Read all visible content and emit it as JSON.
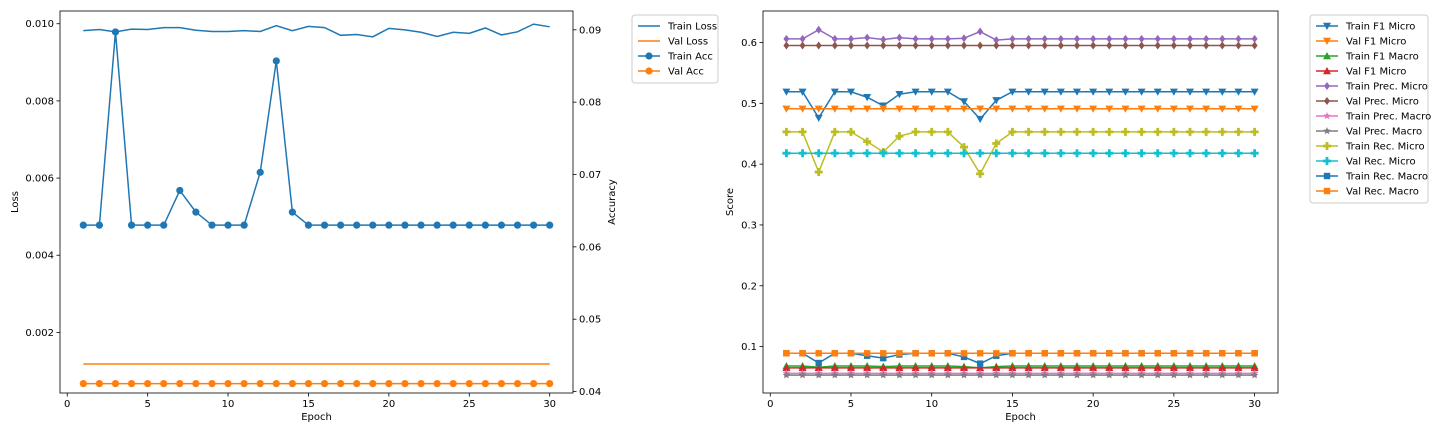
{
  "chart_data": [
    {
      "type": "line",
      "xlabel": "Epoch",
      "ylabel": "Loss",
      "ylabel_right": "Accuracy",
      "xlim": [
        -0.45,
        31.45
      ],
      "ylim": [
        0.00043,
        0.01033
      ],
      "ylim_right": [
        0.0398,
        0.0926
      ],
      "x_ticks": [
        0,
        5,
        10,
        15,
        20,
        25,
        30
      ],
      "y_ticks": [
        0.002,
        0.004,
        0.006,
        0.008,
        0.01
      ],
      "y_tick_labels": [
        "0.002",
        "0.004",
        "0.006",
        "0.008",
        "0.010"
      ],
      "y_ticks_right": [
        0.04,
        0.05,
        0.06,
        0.07,
        0.08,
        0.09
      ],
      "y_tick_labels_right": [
        "0.04",
        "0.05",
        "0.06",
        "0.07",
        "0.08",
        "0.09"
      ],
      "grid": false,
      "legend_position": "outside-right",
      "x": [
        1,
        2,
        3,
        4,
        5,
        6,
        7,
        8,
        9,
        10,
        11,
        12,
        13,
        14,
        15,
        16,
        17,
        18,
        19,
        20,
        21,
        22,
        23,
        24,
        25,
        26,
        27,
        28,
        29,
        30
      ],
      "series": [
        {
          "name": "Train Loss",
          "axis": "left",
          "color": "#1f77b4",
          "marker": "none",
          "values": [
            0.00982,
            0.00985,
            0.00979,
            0.00986,
            0.00985,
            0.0099,
            0.0099,
            0.00983,
            0.0098,
            0.0098,
            0.00982,
            0.0098,
            0.00995,
            0.00982,
            0.00993,
            0.0099,
            0.0097,
            0.00972,
            0.00966,
            0.00988,
            0.00984,
            0.00978,
            0.00967,
            0.00978,
            0.00975,
            0.00989,
            0.00971,
            0.00979,
            0.00999,
            0.00992
          ]
        },
        {
          "name": "Val Loss",
          "axis": "left",
          "color": "#ff7f0e",
          "marker": "none",
          "values": [
            0.00118,
            0.00118,
            0.00118,
            0.00118,
            0.00118,
            0.00118,
            0.00118,
            0.00118,
            0.00118,
            0.00118,
            0.00118,
            0.00118,
            0.00118,
            0.00118,
            0.00118,
            0.00118,
            0.00118,
            0.00118,
            0.00118,
            0.00118,
            0.00118,
            0.00118,
            0.00118,
            0.00118,
            0.00118,
            0.00118,
            0.00118,
            0.00118,
            0.00118,
            0.00118
          ]
        },
        {
          "name": "Train Acc",
          "axis": "right",
          "color": "#1f77b4",
          "marker": "circle",
          "values": [
            0.063,
            0.063,
            0.0897,
            0.063,
            0.063,
            0.063,
            0.0678,
            0.0648,
            0.063,
            0.063,
            0.063,
            0.0703,
            0.0857,
            0.0648,
            0.063,
            0.063,
            0.063,
            0.063,
            0.063,
            0.063,
            0.063,
            0.063,
            0.063,
            0.063,
            0.063,
            0.063,
            0.063,
            0.063,
            0.063,
            0.063
          ]
        },
        {
          "name": "Val Acc",
          "axis": "right",
          "color": "#ff7f0e",
          "marker": "circle",
          "values": [
            0.0411,
            0.0411,
            0.0411,
            0.0411,
            0.0411,
            0.0411,
            0.0411,
            0.0411,
            0.0411,
            0.0411,
            0.0411,
            0.0411,
            0.0411,
            0.0411,
            0.0411,
            0.0411,
            0.0411,
            0.0411,
            0.0411,
            0.0411,
            0.0411,
            0.0411,
            0.0411,
            0.0411,
            0.0411,
            0.0411,
            0.0411,
            0.0411,
            0.0411,
            0.0411
          ]
        }
      ]
    },
    {
      "type": "line",
      "xlabel": "Epoch",
      "ylabel": "Score",
      "xlim": [
        -0.45,
        31.45
      ],
      "ylim": [
        0.0237,
        0.6518
      ],
      "x_ticks": [
        0,
        5,
        10,
        15,
        20,
        25,
        30
      ],
      "y_ticks": [
        0.1,
        0.2,
        0.3,
        0.4,
        0.5,
        0.6
      ],
      "y_tick_labels": [
        "0.1",
        "0.2",
        "0.3",
        "0.4",
        "0.5",
        "0.6"
      ],
      "grid": false,
      "legend_position": "outside-right",
      "x": [
        1,
        2,
        3,
        4,
        5,
        6,
        7,
        8,
        9,
        10,
        11,
        12,
        13,
        14,
        15,
        16,
        17,
        18,
        19,
        20,
        21,
        22,
        23,
        24,
        25,
        26,
        27,
        28,
        29,
        30
      ],
      "series": [
        {
          "name": "Train F1 Micro",
          "color": "#1f77b4",
          "marker": "triangle-down",
          "values": [
            0.519,
            0.519,
            0.476,
            0.519,
            0.519,
            0.51,
            0.496,
            0.515,
            0.519,
            0.519,
            0.519,
            0.503,
            0.474,
            0.505,
            0.519,
            0.519,
            0.519,
            0.519,
            0.519,
            0.519,
            0.519,
            0.519,
            0.519,
            0.519,
            0.519,
            0.519,
            0.519,
            0.519,
            0.519,
            0.519
          ]
        },
        {
          "name": "Val F1 Micro",
          "color": "#ff7f0e",
          "marker": "triangle-down",
          "values": [
            0.491,
            0.491,
            0.491,
            0.491,
            0.491,
            0.491,
            0.491,
            0.491,
            0.491,
            0.491,
            0.491,
            0.491,
            0.491,
            0.491,
            0.491,
            0.491,
            0.491,
            0.491,
            0.491,
            0.491,
            0.491,
            0.491,
            0.491,
            0.491,
            0.491,
            0.491,
            0.491,
            0.491,
            0.491,
            0.491
          ]
        },
        {
          "name": "Train F1 Macro",
          "color": "#2ca02c",
          "marker": "triangle-up",
          "values": [
            0.068,
            0.068,
            0.066,
            0.068,
            0.068,
            0.068,
            0.067,
            0.068,
            0.068,
            0.068,
            0.068,
            0.067,
            0.065,
            0.067,
            0.068,
            0.068,
            0.068,
            0.068,
            0.068,
            0.068,
            0.068,
            0.068,
            0.068,
            0.068,
            0.068,
            0.068,
            0.068,
            0.068,
            0.068,
            0.068
          ]
        },
        {
          "name": "Val F1 Micro",
          "color": "#d62728",
          "marker": "triangle-up",
          "values": [
            0.065,
            0.065,
            0.065,
            0.065,
            0.065,
            0.065,
            0.065,
            0.065,
            0.065,
            0.065,
            0.065,
            0.065,
            0.065,
            0.065,
            0.065,
            0.065,
            0.065,
            0.065,
            0.065,
            0.065,
            0.065,
            0.065,
            0.065,
            0.065,
            0.065,
            0.065,
            0.065,
            0.065,
            0.065,
            0.065
          ]
        },
        {
          "name": "Train Prec. Micro",
          "color": "#9467bd",
          "marker": "diamond",
          "values": [
            0.606,
            0.606,
            0.621,
            0.606,
            0.606,
            0.608,
            0.605,
            0.608,
            0.606,
            0.606,
            0.606,
            0.607,
            0.618,
            0.604,
            0.606,
            0.606,
            0.606,
            0.606,
            0.606,
            0.606,
            0.606,
            0.606,
            0.606,
            0.606,
            0.606,
            0.606,
            0.606,
            0.606,
            0.606,
            0.606
          ]
        },
        {
          "name": "Val Prec. Micro",
          "color": "#8c564b",
          "marker": "diamond",
          "values": [
            0.595,
            0.595,
            0.595,
            0.595,
            0.595,
            0.595,
            0.595,
            0.595,
            0.595,
            0.595,
            0.595,
            0.595,
            0.595,
            0.595,
            0.595,
            0.595,
            0.595,
            0.595,
            0.595,
            0.595,
            0.595,
            0.595,
            0.595,
            0.595,
            0.595,
            0.595,
            0.595,
            0.595,
            0.595,
            0.595
          ]
        },
        {
          "name": "Train Prec. Macro",
          "color": "#e377c2",
          "marker": "star",
          "values": [
            0.056,
            0.056,
            0.056,
            0.056,
            0.056,
            0.056,
            0.056,
            0.056,
            0.056,
            0.056,
            0.056,
            0.056,
            0.056,
            0.056,
            0.056,
            0.056,
            0.056,
            0.056,
            0.056,
            0.056,
            0.056,
            0.056,
            0.056,
            0.056,
            0.056,
            0.056,
            0.056,
            0.056,
            0.056,
            0.056
          ]
        },
        {
          "name": "Val Prec. Macro",
          "color": "#7f7f7f",
          "marker": "star",
          "values": [
            0.053,
            0.053,
            0.053,
            0.053,
            0.053,
            0.053,
            0.053,
            0.053,
            0.053,
            0.053,
            0.053,
            0.053,
            0.053,
            0.053,
            0.053,
            0.053,
            0.053,
            0.053,
            0.053,
            0.053,
            0.053,
            0.053,
            0.053,
            0.053,
            0.053,
            0.053,
            0.053,
            0.053,
            0.053,
            0.053
          ]
        },
        {
          "name": "Train Rec. Micro",
          "color": "#bcbd22",
          "marker": "plus",
          "values": [
            0.453,
            0.453,
            0.387,
            0.453,
            0.453,
            0.437,
            0.42,
            0.446,
            0.453,
            0.453,
            0.453,
            0.428,
            0.384,
            0.434,
            0.453,
            0.453,
            0.453,
            0.453,
            0.453,
            0.453,
            0.453,
            0.453,
            0.453,
            0.453,
            0.453,
            0.453,
            0.453,
            0.453,
            0.453,
            0.453
          ]
        },
        {
          "name": "Val Rec. Micro",
          "color": "#17becf",
          "marker": "plus",
          "values": [
            0.418,
            0.418,
            0.418,
            0.418,
            0.418,
            0.418,
            0.418,
            0.418,
            0.418,
            0.418,
            0.418,
            0.418,
            0.418,
            0.418,
            0.418,
            0.418,
            0.418,
            0.418,
            0.418,
            0.418,
            0.418,
            0.418,
            0.418,
            0.418,
            0.418,
            0.418,
            0.418,
            0.418,
            0.418,
            0.418
          ]
        },
        {
          "name": "Train Rec. Macro",
          "color": "#1f77b4",
          "marker": "square",
          "values": [
            0.089,
            0.089,
            0.073,
            0.089,
            0.089,
            0.085,
            0.081,
            0.087,
            0.089,
            0.089,
            0.089,
            0.083,
            0.072,
            0.085,
            0.089,
            0.089,
            0.089,
            0.089,
            0.089,
            0.089,
            0.089,
            0.089,
            0.089,
            0.089,
            0.089,
            0.089,
            0.089,
            0.089,
            0.089,
            0.089
          ]
        },
        {
          "name": "Val Rec. Macro",
          "color": "#ff7f0e",
          "marker": "square",
          "values": [
            0.089,
            0.089,
            0.089,
            0.089,
            0.089,
            0.089,
            0.089,
            0.089,
            0.089,
            0.089,
            0.089,
            0.089,
            0.089,
            0.089,
            0.089,
            0.089,
            0.089,
            0.089,
            0.089,
            0.089,
            0.089,
            0.089,
            0.089,
            0.089,
            0.089,
            0.089,
            0.089,
            0.089,
            0.089,
            0.089
          ]
        }
      ]
    }
  ]
}
